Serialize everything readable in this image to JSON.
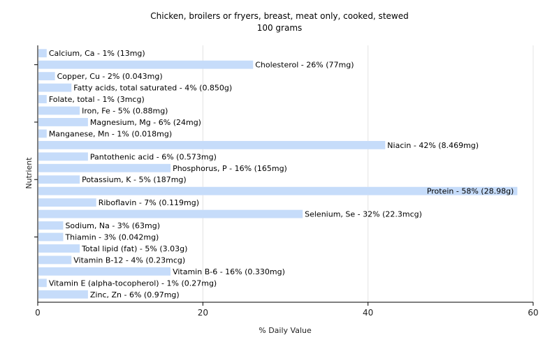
{
  "chart_data": {
    "type": "bar",
    "orientation": "horizontal",
    "title": "Chicken, broilers or fryers, breast, meat only, cooked, stewed",
    "subtitle": "100 grams",
    "xlabel": "% Daily Value",
    "ylabel": "Nutrient",
    "xlim": [
      0,
      60
    ],
    "xticks": [
      0,
      20,
      40,
      60
    ],
    "grid": true,
    "bar_color": "#c6dcfa",
    "categories": [
      "Calcium, Ca",
      "Cholesterol",
      "Copper, Cu",
      "Fatty acids, total saturated",
      "Folate, total",
      "Iron, Fe",
      "Magnesium, Mg",
      "Manganese, Mn",
      "Niacin",
      "Pantothenic acid",
      "Phosphorus, P",
      "Potassium, K",
      "Protein",
      "Riboflavin",
      "Selenium, Se",
      "Sodium, Na",
      "Thiamin",
      "Total lipid (fat)",
      "Vitamin B-12",
      "Vitamin B-6",
      "Vitamin E (alpha-tocopherol)",
      "Zinc, Zn"
    ],
    "values": [
      1,
      26,
      2,
      4,
      1,
      5,
      6,
      1,
      42,
      6,
      16,
      5,
      58,
      7,
      32,
      3,
      3,
      5,
      4,
      16,
      1,
      6
    ],
    "labels": [
      "Calcium, Ca - 1% (13mg)",
      "Cholesterol - 26% (77mg)",
      "Copper, Cu - 2% (0.043mg)",
      "Fatty acids, total saturated - 4% (0.850g)",
      "Folate, total - 1% (3mcg)",
      "Iron, Fe - 5% (0.88mg)",
      "Magnesium, Mg - 6% (24mg)",
      "Manganese, Mn - 1% (0.018mg)",
      "Niacin - 42% (8.469mg)",
      "Pantothenic acid - 6% (0.573mg)",
      "Phosphorus, P - 16% (165mg)",
      "Potassium, K - 5% (187mg)",
      "Protein - 58% (28.98g)",
      "Riboflavin - 7% (0.119mg)",
      "Selenium, Se - 32% (22.3mcg)",
      "Sodium, Na - 3% (63mg)",
      "Thiamin - 3% (0.042mg)",
      "Total lipid (fat) - 5% (3.03g)",
      "Vitamin B-12 - 4% (0.23mcg)",
      "Vitamin B-6 - 16% (0.330mg)",
      "Vitamin E (alpha-tocopherol) - 1% (0.27mg)",
      "Zinc, Zn - 6% (0.97mg)"
    ]
  }
}
